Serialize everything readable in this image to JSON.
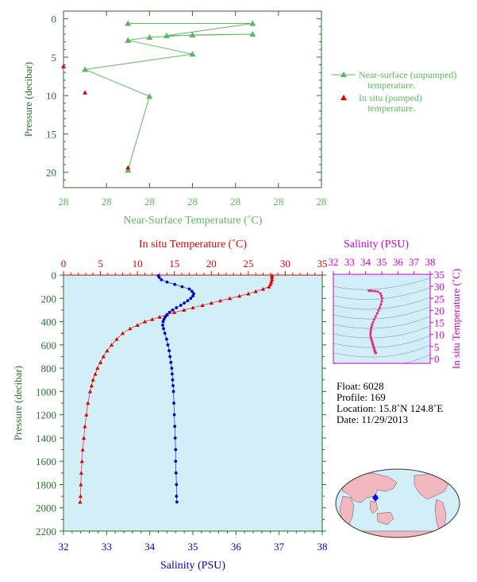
{
  "chart_data": [
    {
      "type": "line",
      "xlabel": "Near-Surface Temperature (˚C)",
      "ylabel": "Pressure (decibar)",
      "x_tick_labels": [
        "28",
        "28",
        "28",
        "28",
        "28",
        "28",
        "28"
      ],
      "y_ticks": [
        0,
        5,
        10,
        15,
        20
      ],
      "ylim": [
        22,
        -1
      ],
      "legend": {
        "placement": "right",
        "entries": [
          {
            "label_line1": "Near-surface (unpumped)",
            "label_line2": "temperature.",
            "color": "#5cb85c",
            "marker": "triangle"
          },
          {
            "label_line1": "In situ (pumped)",
            "label_line2": "temperature.",
            "color": "#dd0000",
            "marker": "triangle"
          }
        ]
      },
      "series": [
        {
          "name": "Near-surface (unpumped) temperature",
          "color": "#5cb85c",
          "points": [
            {
              "t": 1.5,
              "p": 0.6
            },
            {
              "t": 4.4,
              "p": 0.6
            },
            {
              "t": 2.4,
              "p": 2.2
            },
            {
              "t": 4.4,
              "p": 2.0
            },
            {
              "t": 3.0,
              "p": 2.1
            },
            {
              "t": 2.0,
              "p": 2.4
            },
            {
              "t": 1.5,
              "p": 2.8
            },
            {
              "t": 3.0,
              "p": 4.6
            },
            {
              "t": 0.5,
              "p": 6.6
            },
            {
              "t": 2.0,
              "p": 10.1
            },
            {
              "t": 1.5,
              "p": 19.7
            }
          ]
        },
        {
          "name": "In situ (pumped) temperature",
          "color": "#dd0000",
          "points": [
            {
              "t": 0.0,
              "p": 6.2
            },
            {
              "t": 0.5,
              "p": 9.6
            },
            {
              "t": 1.5,
              "p": 19.4
            }
          ]
        }
      ]
    },
    {
      "type": "line",
      "top_axis_label": "In situ Temperature (˚C)",
      "bottom_axis_label": "Salinity (PSU)",
      "ylabel": "Pressure (decibar)",
      "temperature_xlim": [
        0,
        35
      ],
      "salinity_xlim": [
        32,
        38
      ],
      "ylim": [
        2200,
        0
      ],
      "temperature_ticks": [
        0,
        5,
        10,
        15,
        20,
        25,
        30,
        35
      ],
      "salinity_ticks": [
        32,
        33,
        34,
        35,
        36,
        37,
        38
      ],
      "pressure_ticks": [
        0,
        200,
        400,
        600,
        800,
        1000,
        1200,
        1400,
        1600,
        1800,
        2000,
        2200
      ],
      "background": "#d2eff8",
      "temperature_color": "#dd0000",
      "salinity_color": "#0000cc",
      "temperature_profile": [
        {
          "p": 5,
          "v": 28.2
        },
        {
          "p": 20,
          "v": 28.2
        },
        {
          "p": 40,
          "v": 28.2
        },
        {
          "p": 60,
          "v": 28.1
        },
        {
          "p": 80,
          "v": 28.0
        },
        {
          "p": 100,
          "v": 27.8
        },
        {
          "p": 120,
          "v": 27.0
        },
        {
          "p": 140,
          "v": 26.0
        },
        {
          "p": 160,
          "v": 25.0
        },
        {
          "p": 180,
          "v": 23.8
        },
        {
          "p": 200,
          "v": 22.5
        },
        {
          "p": 220,
          "v": 21.2
        },
        {
          "p": 240,
          "v": 20.0
        },
        {
          "p": 260,
          "v": 18.8
        },
        {
          "p": 280,
          "v": 17.5
        },
        {
          "p": 300,
          "v": 16.3
        },
        {
          "p": 320,
          "v": 15.0
        },
        {
          "p": 340,
          "v": 14.0
        },
        {
          "p": 360,
          "v": 13.0
        },
        {
          "p": 380,
          "v": 12.0
        },
        {
          "p": 400,
          "v": 11.0
        },
        {
          "p": 430,
          "v": 10.0
        },
        {
          "p": 460,
          "v": 9.0
        },
        {
          "p": 500,
          "v": 8.0
        },
        {
          "p": 550,
          "v": 7.2
        },
        {
          "p": 600,
          "v": 6.5
        },
        {
          "p": 650,
          "v": 5.9
        },
        {
          "p": 700,
          "v": 5.4
        },
        {
          "p": 750,
          "v": 5.0
        },
        {
          "p": 800,
          "v": 4.6
        },
        {
          "p": 850,
          "v": 4.3
        },
        {
          "p": 900,
          "v": 4.0
        },
        {
          "p": 950,
          "v": 3.8
        },
        {
          "p": 1000,
          "v": 3.6
        },
        {
          "p": 1100,
          "v": 3.3
        },
        {
          "p": 1200,
          "v": 3.1
        },
        {
          "p": 1300,
          "v": 2.9
        },
        {
          "p": 1400,
          "v": 2.75
        },
        {
          "p": 1500,
          "v": 2.6
        },
        {
          "p": 1600,
          "v": 2.5
        },
        {
          "p": 1700,
          "v": 2.4
        },
        {
          "p": 1800,
          "v": 2.35
        },
        {
          "p": 1900,
          "v": 2.3
        },
        {
          "p": 1950,
          "v": 2.25
        }
      ],
      "salinity_profile": [
        {
          "p": 5,
          "v": 34.2
        },
        {
          "p": 20,
          "v": 34.22
        },
        {
          "p": 40,
          "v": 34.27
        },
        {
          "p": 60,
          "v": 34.4
        },
        {
          "p": 80,
          "v": 34.58
        },
        {
          "p": 100,
          "v": 34.75
        },
        {
          "p": 120,
          "v": 34.92
        },
        {
          "p": 140,
          "v": 34.98
        },
        {
          "p": 160,
          "v": 35.02
        },
        {
          "p": 180,
          "v": 35.0
        },
        {
          "p": 200,
          "v": 34.95
        },
        {
          "p": 220,
          "v": 34.88
        },
        {
          "p": 240,
          "v": 34.8
        },
        {
          "p": 260,
          "v": 34.72
        },
        {
          "p": 280,
          "v": 34.62
        },
        {
          "p": 300,
          "v": 34.53
        },
        {
          "p": 320,
          "v": 34.46
        },
        {
          "p": 340,
          "v": 34.4
        },
        {
          "p": 360,
          "v": 34.36
        },
        {
          "p": 380,
          "v": 34.33
        },
        {
          "p": 400,
          "v": 34.31
        },
        {
          "p": 430,
          "v": 34.3
        },
        {
          "p": 460,
          "v": 34.32
        },
        {
          "p": 500,
          "v": 34.35
        },
        {
          "p": 550,
          "v": 34.39
        },
        {
          "p": 600,
          "v": 34.42
        },
        {
          "p": 650,
          "v": 34.45
        },
        {
          "p": 700,
          "v": 34.47
        },
        {
          "p": 750,
          "v": 34.49
        },
        {
          "p": 800,
          "v": 34.51
        },
        {
          "p": 850,
          "v": 34.52
        },
        {
          "p": 900,
          "v": 34.53
        },
        {
          "p": 950,
          "v": 34.54
        },
        {
          "p": 1000,
          "v": 34.55
        },
        {
          "p": 1100,
          "v": 34.56
        },
        {
          "p": 1200,
          "v": 34.57
        },
        {
          "p": 1300,
          "v": 34.58
        },
        {
          "p": 1400,
          "v": 34.59
        },
        {
          "p": 1500,
          "v": 34.6
        },
        {
          "p": 1600,
          "v": 34.6
        },
        {
          "p": 1700,
          "v": 34.61
        },
        {
          "p": 1800,
          "v": 34.62
        },
        {
          "p": 1900,
          "v": 34.62
        },
        {
          "p": 1950,
          "v": 34.63
        }
      ]
    },
    {
      "type": "scatter",
      "top_axis_label": "Salinity (PSU)",
      "right_axis_label": "In situ Temperature (˚C)",
      "salinity_ticks": [
        32,
        33,
        34,
        35,
        36,
        37,
        38
      ],
      "temperature_ticks": [
        0,
        5,
        10,
        15,
        20,
        25,
        30,
        35
      ],
      "xlim": [
        32,
        38
      ],
      "ylim": [
        -2,
        35
      ],
      "color": "#e0338f",
      "axis_color": "#cc00cc"
    }
  ],
  "float_info": {
    "float_line": "Float:  6028",
    "profile_line": "Profile:  169",
    "location_line": "Location:  15.8˚N  124.8˚E",
    "date_line": "Date:  11/29/2013"
  },
  "map": {
    "land_color": "#f2b8bf",
    "ocean_color": "#d2eff8",
    "marker_color": "#0000ff"
  }
}
